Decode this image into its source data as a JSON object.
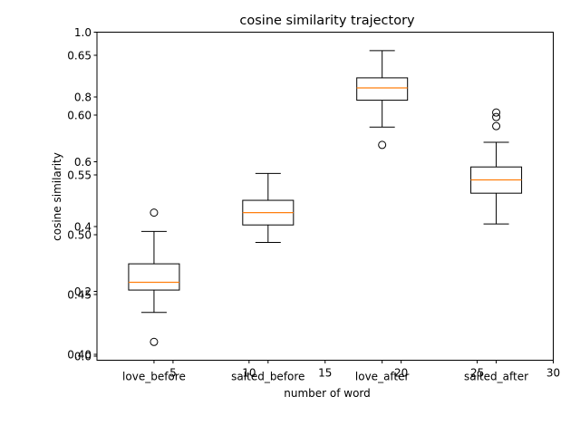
{
  "chart_data": {
    "type": "box",
    "title": "cosine similarity trajectory",
    "xlabel": "number of word",
    "ylabel": "cosine similarity",
    "categories": [
      "love_before",
      "salted_before",
      "love_after",
      "salted_after"
    ],
    "x_ticks": [
      "5",
      "10",
      "15",
      "20",
      "25",
      "30"
    ],
    "xlim": [
      0,
      30
    ],
    "ylim": [
      0.0,
      1.0
    ],
    "y_ticks_left_primary": [
      "0.0",
      "0.2",
      "0.4",
      "0.6",
      "0.8",
      "1.0"
    ],
    "y_ticks_left_secondary": [
      "0.40",
      "0.45",
      "0.50",
      "0.55",
      "0.60",
      "0.65"
    ],
    "boxes": [
      {
        "name": "love_before",
        "whisker_low": 0.135,
        "q1": 0.204,
        "median": 0.228,
        "q3": 0.285,
        "whisker_high": 0.385,
        "fliers": [
          0.044,
          0.443
        ]
      },
      {
        "name": "salted_before",
        "whisker_low": 0.351,
        "q1": 0.405,
        "median": 0.443,
        "q3": 0.481,
        "whisker_high": 0.564,
        "fliers": []
      },
      {
        "name": "love_after",
        "whisker_low": 0.707,
        "q1": 0.79,
        "median": 0.828,
        "q3": 0.859,
        "whisker_high": 0.943,
        "fliers": [
          0.652
        ]
      },
      {
        "name": "salted_after",
        "whisker_low": 0.408,
        "q1": 0.503,
        "median": 0.544,
        "q3": 0.584,
        "whisker_high": 0.66,
        "fliers": [
          0.71,
          0.738,
          0.752
        ]
      }
    ],
    "box_color": "#000000",
    "median_color": "#ff7f0e",
    "grid": false,
    "legend": "none"
  }
}
